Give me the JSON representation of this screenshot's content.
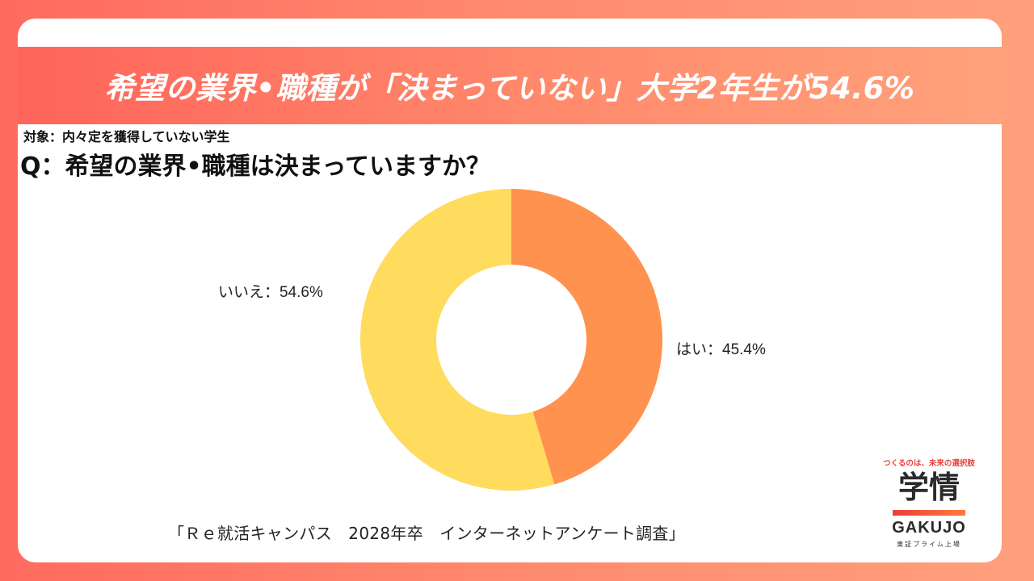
{
  "banner": {
    "title": "希望の業界•職種が「決まっていない」大学2年生が54.6%"
  },
  "subtitle": {
    "target": "対象：内々定を獲得していない学生",
    "question": "Q：希望の業界•職種は決まっていますか？"
  },
  "source": "「Ｒｅ就活キャンパス　2028年卒　インターネットアンケート調査」",
  "logo": {
    "tagline": "つくるのは、未来の選択肢",
    "mark": "学情",
    "name": "GAKUJO",
    "sub": "東証プライム上場"
  },
  "colors": {
    "yes": "#ff924f",
    "no": "#ffdb5e",
    "accent": "#ff6a5f"
  },
  "chart_data": {
    "type": "pie",
    "variant": "donut",
    "slices": [
      {
        "label": "はい",
        "value": 45.4,
        "display": "はい：45.4%",
        "color": "#ff924f"
      },
      {
        "label": "いいえ",
        "value": 54.6,
        "display": "いいえ：54.6%",
        "color": "#ffdb5e"
      }
    ],
    "start": "12 o'clock",
    "direction": "clockwise"
  }
}
